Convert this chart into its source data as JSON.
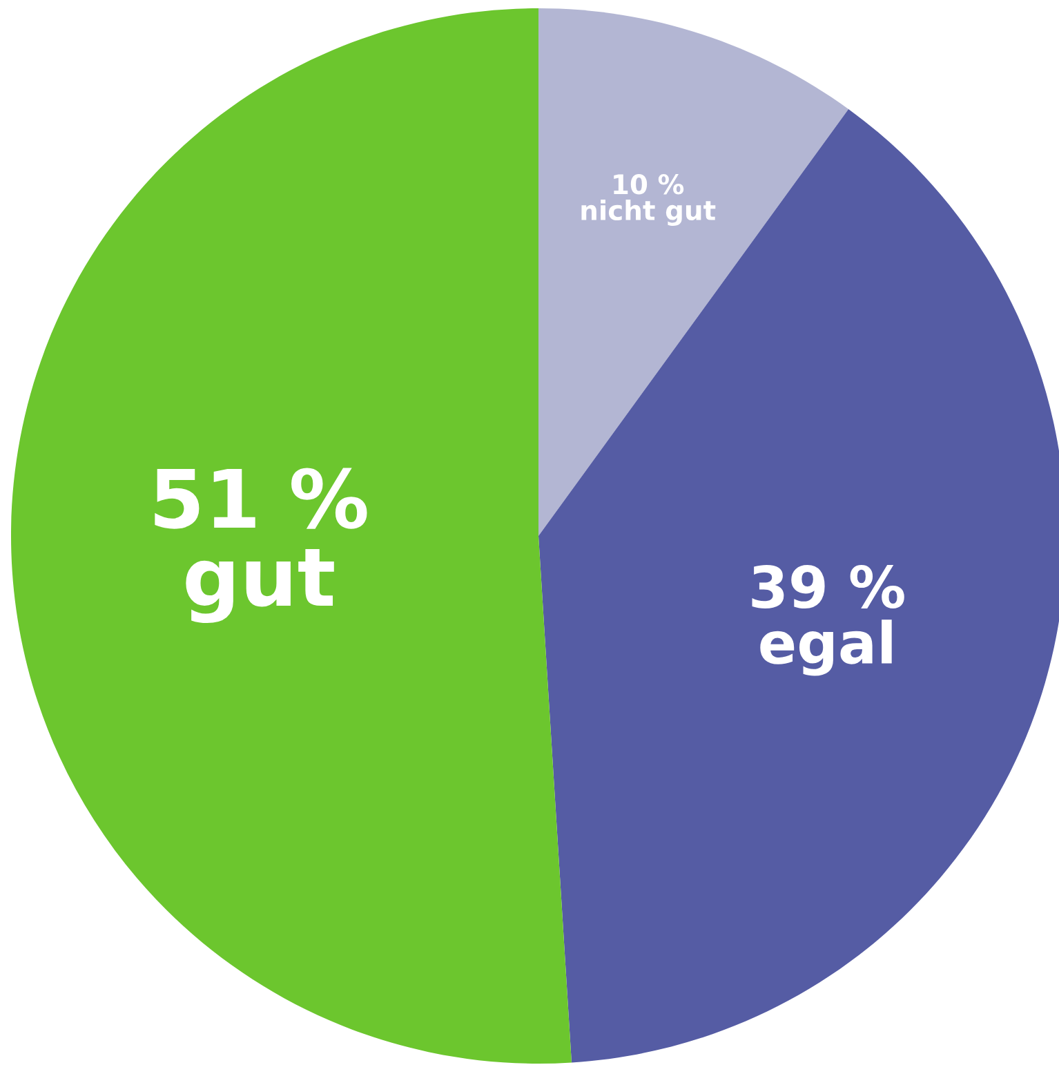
{
  "chart_data": {
    "type": "pie",
    "categories": [
      "nicht gut",
      "egal",
      "gut"
    ],
    "values": [
      10,
      39,
      51
    ],
    "value_labels": [
      "10 %",
      "39 %",
      "51 %"
    ],
    "colors": [
      "#b3b6d3",
      "#555ca4",
      "#6cc62e"
    ]
  }
}
